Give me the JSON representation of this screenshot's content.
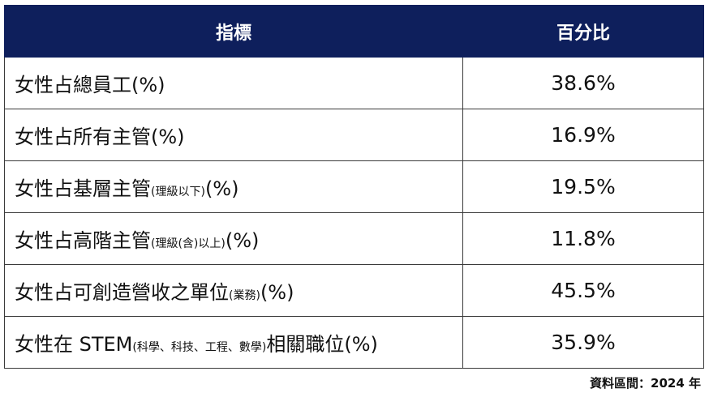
{
  "table": {
    "headers": [
      "指標",
      "百分比"
    ],
    "rows": [
      {
        "label": "女性占總員工",
        "note": "",
        "suffix": "(%)",
        "value": "38.6%"
      },
      {
        "label": "女性占所有主管",
        "note": "",
        "suffix": "(%)",
        "value": "16.9%"
      },
      {
        "label": "女性占基層主管",
        "note": "(理級以下)",
        "suffix": "(%)",
        "value": "19.5%"
      },
      {
        "label": "女性占高階主管",
        "note": "(理級(含)以上)",
        "suffix": "(%)",
        "value": "11.8%"
      },
      {
        "label": "女性占可創造營收之單位",
        "note": "(業務)",
        "suffix": "(%)",
        "value": "45.5%"
      },
      {
        "label": "女性在 STEM",
        "note": "(科學、科技、工程、數學)",
        "suffix": "相關職位(%)",
        "value": "35.9%"
      }
    ]
  },
  "source": "資料區間：2024 年",
  "colors": {
    "header_bg": "#0e1f5c",
    "header_text": "#ffffff",
    "border": "#3a3a3a"
  }
}
